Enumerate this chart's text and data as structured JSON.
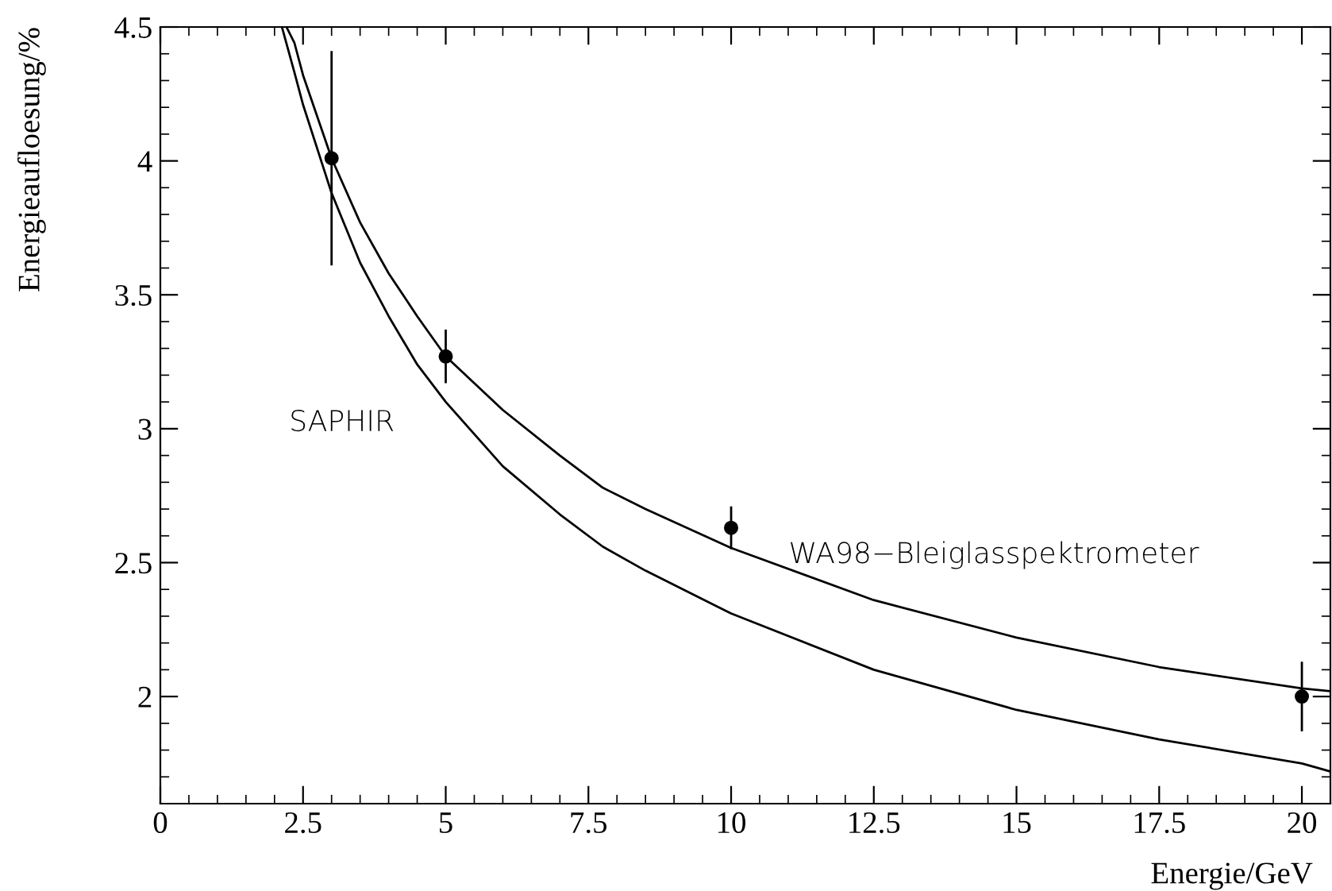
{
  "chart_data": {
    "type": "line",
    "xlabel": "Energie/GeV",
    "ylabel": "Energieaufloesung/%",
    "xlim": [
      0,
      20.5
    ],
    "ylim": [
      1.6,
      4.5
    ],
    "xticks": [
      0,
      2.5,
      5,
      7.5,
      10,
      12.5,
      15,
      17.5,
      20
    ],
    "yticks": [
      2,
      2.5,
      3,
      3.5,
      4,
      4.5
    ],
    "grid": false,
    "legend": false,
    "series": [
      {
        "name": "WA98−Bleiglasspektrometer",
        "color": "#000000",
        "marker": "none",
        "line_style": "solid",
        "x": [
          2.21,
          2.35,
          2.5,
          3,
          3.5,
          4,
          4.5,
          5,
          6,
          7,
          7.75,
          8.5,
          10,
          12.5,
          15,
          17.5,
          20,
          20.5
        ],
        "values": [
          4.5,
          4.44,
          4.32,
          4.01,
          3.77,
          3.58,
          3.42,
          3.27,
          3.07,
          2.9,
          2.78,
          2.7,
          2.555,
          2.36,
          2.22,
          2.11,
          2.03,
          2.02
        ]
      },
      {
        "name": "SAPHIR",
        "color": "#000000",
        "marker": "none",
        "line_style": "solid",
        "x": [
          2.13,
          2.35,
          2.5,
          3,
          3.5,
          4,
          4.5,
          5,
          6,
          7,
          7.75,
          8.5,
          10,
          12.5,
          15,
          17.5,
          20,
          20.5
        ],
        "values": [
          4.5,
          4.33,
          4.21,
          3.88,
          3.62,
          3.42,
          3.24,
          3.1,
          2.86,
          2.68,
          2.56,
          2.47,
          2.31,
          2.1,
          1.95,
          1.84,
          1.75,
          1.72
        ]
      },
      {
        "type": "scatter",
        "color": "#000000",
        "marker": "circle",
        "x": [
          3,
          5,
          10,
          20
        ],
        "values": [
          4.01,
          3.27,
          2.63,
          2.0
        ],
        "errors": [
          0.4,
          0.1,
          0.08,
          0.13
        ]
      }
    ]
  }
}
